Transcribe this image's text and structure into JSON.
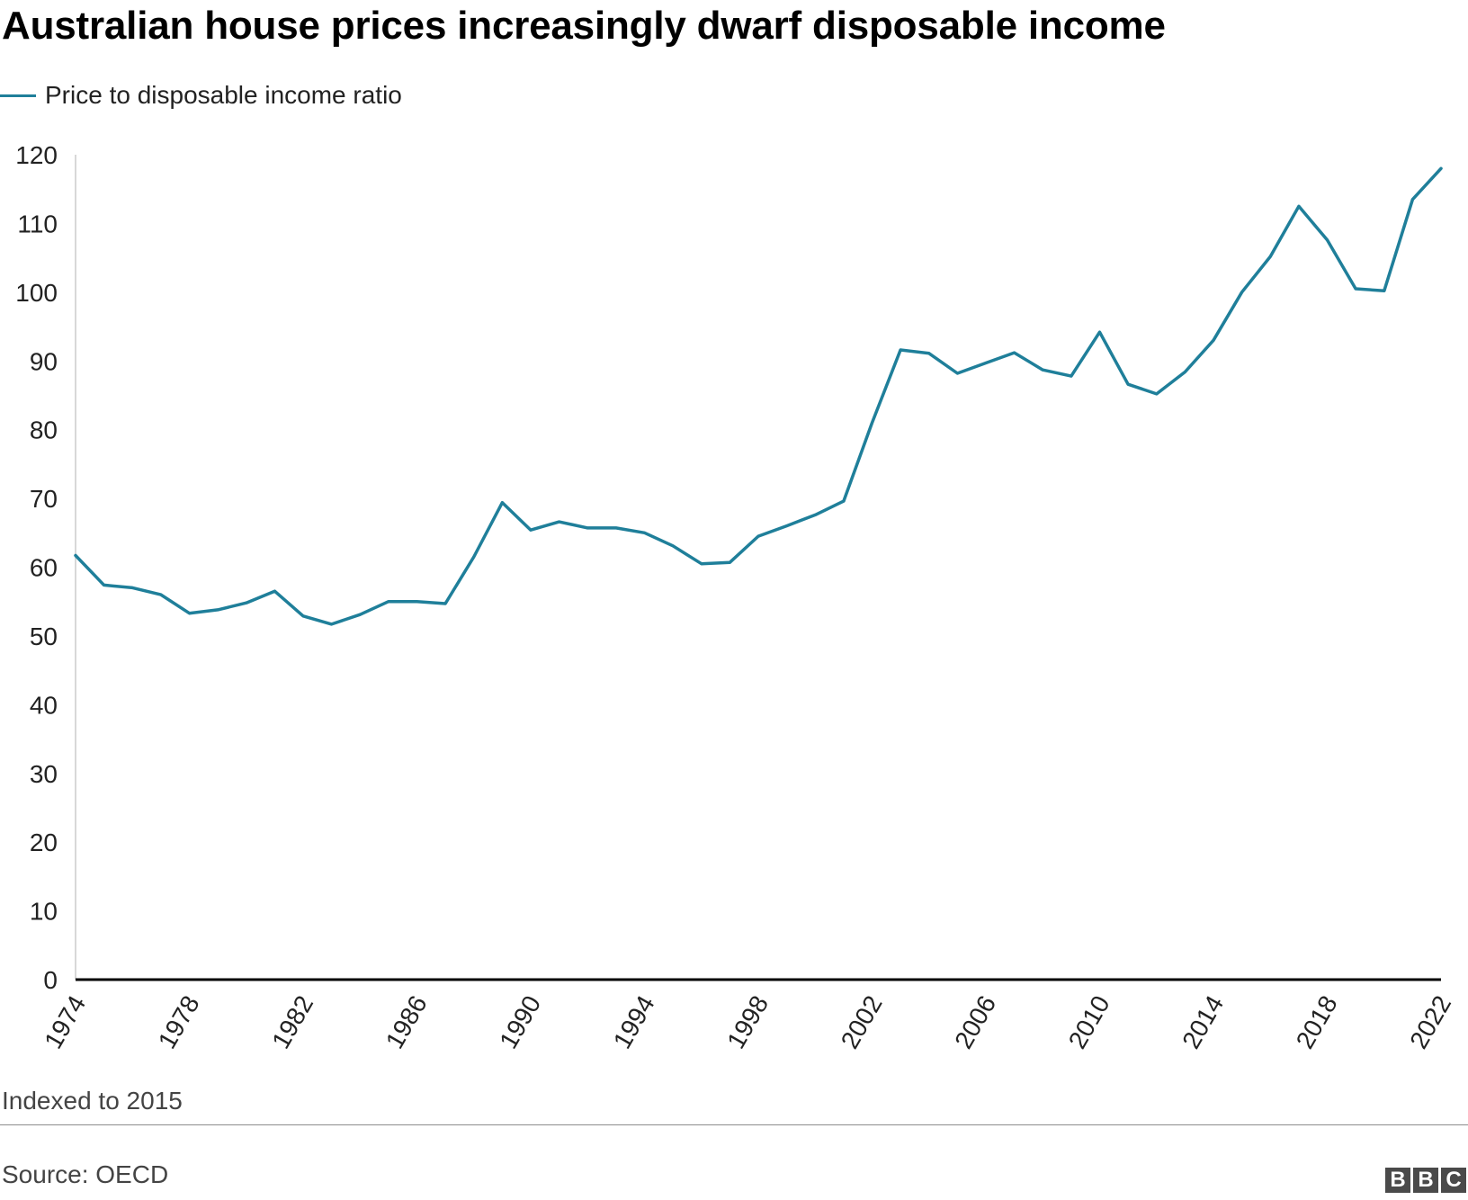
{
  "title": "Australian house prices increasingly dwarf disposable income",
  "note": "Indexed to 2015",
  "source": "Source: OECD",
  "logo": [
    "B",
    "B",
    "C"
  ],
  "colors": {
    "series": "#1f7f9a",
    "axis": "#000000",
    "yaxis_line": "#cccccc",
    "text": "#222222"
  },
  "chart_data": {
    "type": "line",
    "title": "Australian house prices increasingly dwarf disposable income",
    "xlabel": "",
    "ylabel": "",
    "ylim": [
      0,
      120
    ],
    "xlim": [
      1974,
      2022
    ],
    "yticks": [
      "0",
      "10",
      "20",
      "30",
      "40",
      "50",
      "60",
      "70",
      "80",
      "90",
      "100",
      "110",
      "120"
    ],
    "xticks": [
      "1974",
      "1978",
      "1982",
      "1986",
      "1990",
      "1994",
      "1998",
      "2002",
      "2006",
      "2010",
      "2014",
      "2018",
      "2022"
    ],
    "grid": false,
    "legend_position": "top-left",
    "x": [
      1974,
      1975,
      1976,
      1977,
      1978,
      1979,
      1980,
      1981,
      1982,
      1983,
      1984,
      1985,
      1986,
      1987,
      1988,
      1989,
      1990,
      1991,
      1992,
      1993,
      1994,
      1995,
      1996,
      1997,
      1998,
      1999,
      2000,
      2001,
      2002,
      2003,
      2004,
      2005,
      2006,
      2007,
      2008,
      2009,
      2010,
      2011,
      2012,
      2013,
      2014,
      2015,
      2016,
      2017,
      2018,
      2019,
      2020,
      2021,
      2022
    ],
    "series": [
      {
        "name": "Price to disposable income ratio",
        "values": [
          61.7,
          57.4,
          57.0,
          56.0,
          53.3,
          53.8,
          54.8,
          56.5,
          52.9,
          51.7,
          53.1,
          55.0,
          55.0,
          54.7,
          61.5,
          69.4,
          65.4,
          66.6,
          65.7,
          65.7,
          65.0,
          63.1,
          60.5,
          60.7,
          64.5,
          66.0,
          67.6,
          69.6,
          81.0,
          91.6,
          91.1,
          88.2,
          89.7,
          91.2,
          88.7,
          87.8,
          94.2,
          86.6,
          85.2,
          88.4,
          93.0,
          100.0,
          105.2,
          112.5,
          107.6,
          100.5,
          100.2,
          113.5,
          118.0
        ]
      }
    ]
  }
}
